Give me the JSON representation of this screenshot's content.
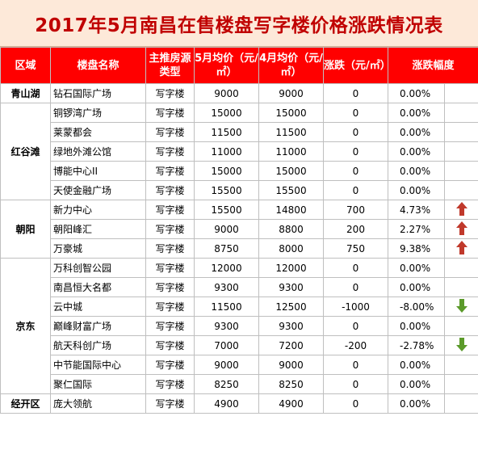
{
  "title": "2017年5月南昌在售楼盘写字楼价格涨跌情况表",
  "headers": [
    "区域",
    "楼盘名称",
    "主推房源类型",
    "5月均价（元/㎡）",
    "4月均价（元/㎡）",
    "涨跌（元/㎡）",
    "涨跌幅度"
  ],
  "colors": {
    "header_bg": "#ff0000",
    "title_bg": "#fde9d9",
    "title_text": "#c00000",
    "up": "#c0392b",
    "down": "#5b9a2a"
  },
  "regions": [
    {
      "name": "青山湖",
      "rows": [
        {
          "name": "钻石国际广场",
          "type": "写字楼",
          "may": "9000",
          "apr": "9000",
          "change": "0",
          "pct": "0.00%",
          "trend": ""
        }
      ]
    },
    {
      "name": "红谷滩",
      "rows": [
        {
          "name": "铜锣湾广场",
          "type": "写字楼",
          "may": "15000",
          "apr": "15000",
          "change": "0",
          "pct": "0.00%",
          "trend": ""
        },
        {
          "name": "莱蒙都会",
          "type": "写字楼",
          "may": "11500",
          "apr": "11500",
          "change": "0",
          "pct": "0.00%",
          "trend": ""
        },
        {
          "name": "绿地外滩公馆",
          "type": "写字楼",
          "may": "11000",
          "apr": "11000",
          "change": "0",
          "pct": "0.00%",
          "trend": ""
        },
        {
          "name": "博能中心II",
          "type": "写字楼",
          "may": "15000",
          "apr": "15000",
          "change": "0",
          "pct": "0.00%",
          "trend": ""
        },
        {
          "name": "天使金融广场",
          "type": "写字楼",
          "may": "15500",
          "apr": "15500",
          "change": "0",
          "pct": "0.00%",
          "trend": ""
        }
      ]
    },
    {
      "name": "朝阳",
      "rows": [
        {
          "name": "新力中心",
          "type": "写字楼",
          "may": "15500",
          "apr": "14800",
          "change": "700",
          "pct": "4.73%",
          "trend": "up-arrow-icon"
        },
        {
          "name": "朝阳峰汇",
          "type": "写字楼",
          "may": "9000",
          "apr": "8800",
          "change": "200",
          "pct": "2.27%",
          "trend": "up-arrow-icon"
        },
        {
          "name": "万豪城",
          "type": "写字楼",
          "may": "8750",
          "apr": "8000",
          "change": "750",
          "pct": "9.38%",
          "trend": "up-arrow-icon"
        }
      ]
    },
    {
      "name": "京东",
      "rows": [
        {
          "name": "万科创智公园",
          "type": "写字楼",
          "may": "12000",
          "apr": "12000",
          "change": "0",
          "pct": "0.00%",
          "trend": ""
        },
        {
          "name": "南昌恒大名都",
          "type": "写字楼",
          "may": "9300",
          "apr": "9300",
          "change": "0",
          "pct": "0.00%",
          "trend": ""
        },
        {
          "name": "云中城",
          "type": "写字楼",
          "may": "11500",
          "apr": "12500",
          "change": "-1000",
          "pct": "-8.00%",
          "trend": "down-arrow-icon"
        },
        {
          "name": "巅峰财富广场",
          "type": "写字楼",
          "may": "9300",
          "apr": "9300",
          "change": "0",
          "pct": "0.00%",
          "trend": ""
        },
        {
          "name": "航天科创广场",
          "type": "写字楼",
          "may": "7000",
          "apr": "7200",
          "change": "-200",
          "pct": "-2.78%",
          "trend": "down-arrow-icon"
        },
        {
          "name": "中节能国际中心",
          "type": "写字楼",
          "may": "9000",
          "apr": "9000",
          "change": "0",
          "pct": "0.00%",
          "trend": ""
        },
        {
          "name": "聚仁国际",
          "type": "写字楼",
          "may": "8250",
          "apr": "8250",
          "change": "0",
          "pct": "0.00%",
          "trend": ""
        }
      ]
    },
    {
      "name": "经开区",
      "rows": [
        {
          "name": "庞大领航",
          "type": "写字楼",
          "may": "4900",
          "apr": "4900",
          "change": "0",
          "pct": "0.00%",
          "trend": ""
        }
      ]
    }
  ]
}
